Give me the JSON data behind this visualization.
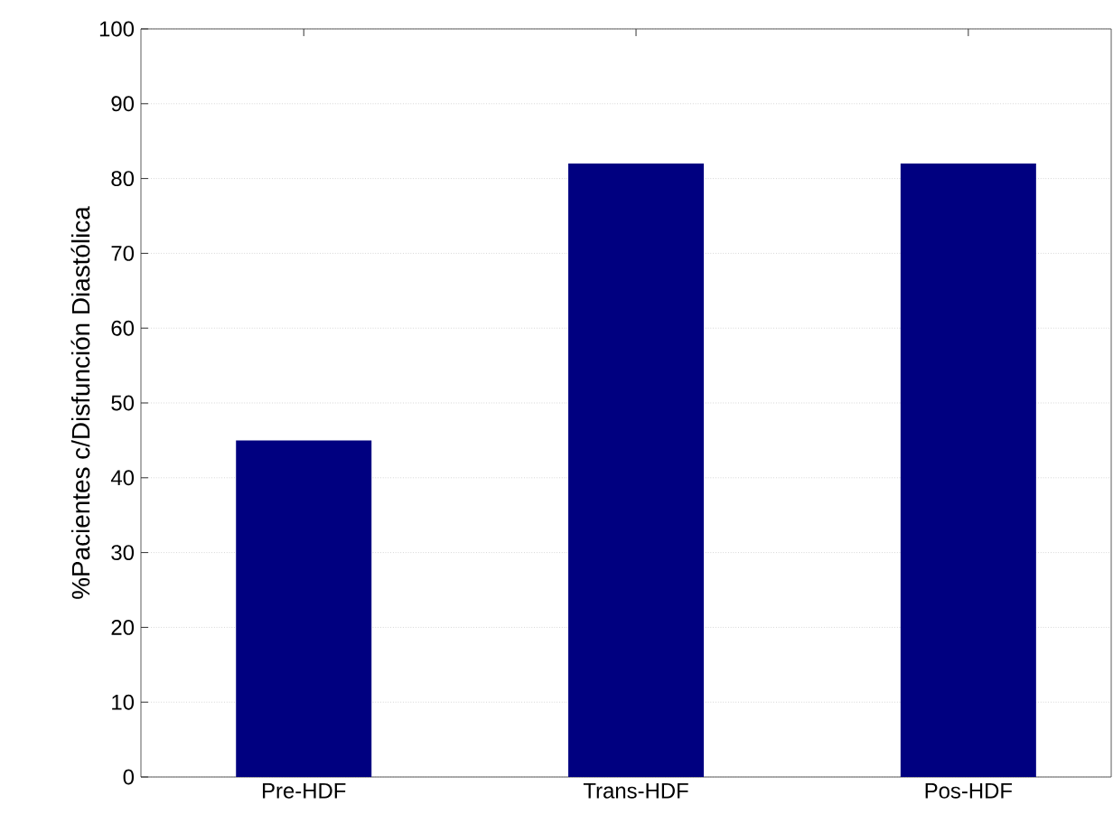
{
  "chart_data": {
    "type": "bar",
    "ylabel": "%Pacientes c/Disfunción Diastólica",
    "categories": [
      "Pre-HDF",
      "Trans-HDF",
      "Pos-HDF"
    ],
    "values": [
      45,
      82,
      82
    ],
    "color": "#000080",
    "ylim": [
      0,
      100
    ],
    "yticks": [
      0,
      10,
      20,
      30,
      40,
      50,
      60,
      70,
      80,
      90,
      100
    ],
    "grid": "y"
  }
}
